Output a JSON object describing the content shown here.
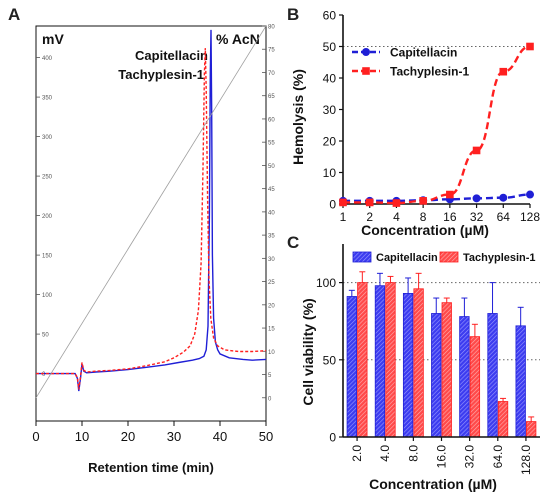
{
  "colors": {
    "blue": "#1f1fd6",
    "red": "#ff2020",
    "axis": "#111111",
    "grid": "#666666"
  },
  "panels": {
    "A": "A",
    "B": "B",
    "C": "C"
  },
  "chart_data": [
    {
      "id": "A",
      "type": "line",
      "title": "",
      "xlabel": "Retention time (min)",
      "ylabel": "mV",
      "y2label": "% AcN",
      "xlim": [
        0,
        50
      ],
      "ylim": [
        -60,
        440
      ],
      "y2lim": [
        -5,
        80
      ],
      "xticks": [
        "0",
        "10",
        "20",
        "30",
        "40",
        "50"
      ],
      "yticks": [
        "0",
        "50",
        "100",
        "150",
        "200",
        "250",
        "300",
        "350",
        "400"
      ],
      "y2ticks": [
        "0",
        "5",
        "10",
        "15",
        "20",
        "25",
        "30",
        "35",
        "40",
        "45",
        "50",
        "55",
        "60",
        "65",
        "70",
        "75",
        "80"
      ],
      "series": [
        {
          "name": "Capitellacin",
          "color": "#1f1fd6",
          "dash": false,
          "x": [
            0,
            5,
            8.5,
            9.0,
            9.3,
            9.7,
            10.0,
            10.4,
            11,
            13,
            16,
            20,
            24,
            28,
            31,
            34,
            35.5,
            36.5,
            37.0,
            37.4,
            37.7,
            37.9,
            38.05,
            38.2,
            38.35,
            38.6,
            39.0,
            39.5,
            40,
            42,
            45,
            47,
            50
          ],
          "y": [
            0,
            0,
            0,
            -6,
            -22,
            -5,
            12,
            3,
            1,
            2,
            3,
            5,
            8,
            11,
            14,
            17,
            19,
            22,
            30,
            60,
            200,
            380,
            435,
            330,
            150,
            70,
            40,
            30,
            25,
            20,
            18,
            17,
            18
          ]
        },
        {
          "name": "Tachyplesin-1",
          "color": "#ff2020",
          "dash": true,
          "x": [
            0,
            5,
            8.5,
            9.0,
            9.3,
            9.7,
            10.0,
            10.4,
            11,
            13,
            16,
            20,
            24,
            28,
            30,
            32,
            33.5,
            34.5,
            35.3,
            35.9,
            36.3,
            36.6,
            36.8,
            37.0,
            37.3,
            37.6,
            38.0,
            38.6,
            39.5,
            41,
            44,
            47,
            50
          ],
          "y": [
            0,
            0,
            0,
            -5,
            -20,
            -3,
            14,
            4,
            2,
            3,
            4,
            6,
            10,
            15,
            20,
            27,
            35,
            50,
            80,
            140,
            260,
            380,
            412,
            360,
            220,
            120,
            70,
            45,
            35,
            30,
            28,
            28,
            29
          ]
        },
        {
          "name": "% AcN",
          "color": "#a0a0a0",
          "dash": false,
          "axis": "y2",
          "x": [
            0,
            50
          ],
          "y": [
            0,
            80
          ]
        }
      ]
    },
    {
      "id": "B",
      "type": "scatter",
      "title": "",
      "xlabel": "Concentration (µM)",
      "ylabel": "Hemolysis (%)",
      "scale_x": "log2",
      "categories": [
        "1",
        "2",
        "4",
        "8",
        "16",
        "32",
        "64",
        "128"
      ],
      "ylim": [
        0,
        60
      ],
      "yticks": [
        "0",
        "10",
        "20",
        "30",
        "40",
        "50",
        "60"
      ],
      "reference_lines": [
        50
      ],
      "legend": "top-left",
      "series": [
        {
          "name": "Capitellacin",
          "color": "#1f1fd6",
          "marker": "circle",
          "values": [
            1,
            1,
            1,
            1.2,
            1.5,
            1.8,
            2,
            3
          ]
        },
        {
          "name": "Tachyplesin-1",
          "color": "#ff2020",
          "marker": "square",
          "values": [
            0.5,
            0.5,
            0.3,
            1.0,
            3,
            17,
            42,
            50
          ]
        }
      ]
    },
    {
      "id": "C",
      "type": "bar",
      "title": "",
      "xlabel": "Concentration (µM)",
      "ylabel": "Cell viability (%)",
      "categories": [
        "2.0",
        "4.0",
        "8.0",
        "16.0",
        "32.0",
        "64.0",
        "128.0"
      ],
      "ylim": [
        0,
        125
      ],
      "yticks": [
        "0",
        "50",
        "100"
      ],
      "reference_lines": [
        50,
        100
      ],
      "legend": "top",
      "series": [
        {
          "name": "Capitellacin",
          "color": "#1f1fd6",
          "values": [
            91,
            98,
            93,
            80,
            78,
            80,
            72
          ],
          "errors": [
            4,
            8,
            10,
            10,
            12,
            20,
            12
          ]
        },
        {
          "name": "Tachyplesin-1",
          "color": "#ff2020",
          "values": [
            100,
            100,
            96,
            87,
            65,
            23,
            10
          ],
          "errors": [
            7,
            4,
            10,
            3,
            8,
            2,
            3
          ]
        }
      ]
    }
  ]
}
